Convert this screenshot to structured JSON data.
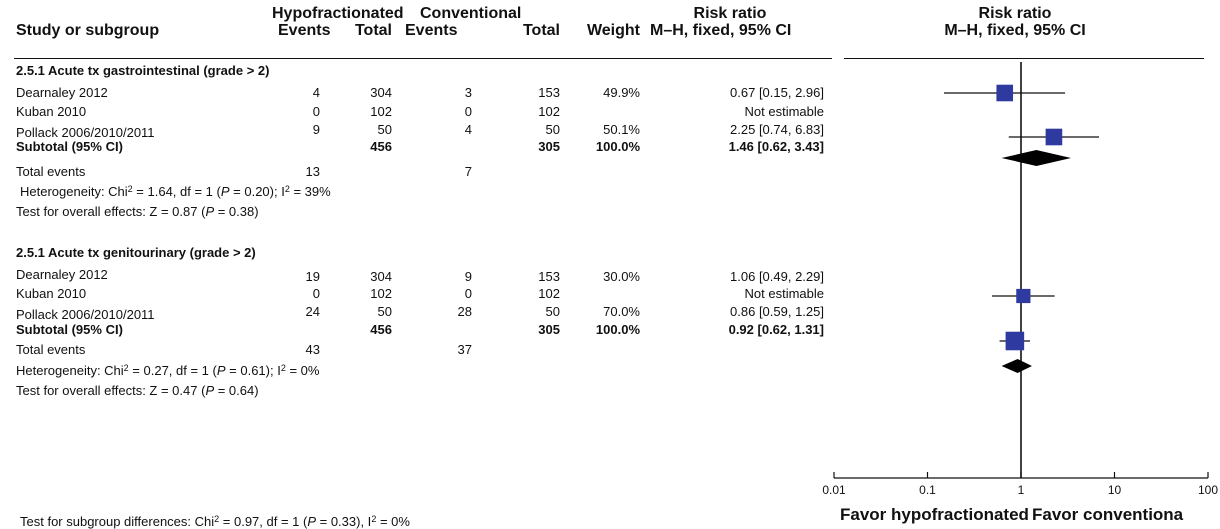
{
  "header": {
    "group1": "Hypofractionated",
    "group2": "Conventional",
    "risk_ratio": "Risk ratio",
    "risk_ratio_plot": "Risk ratio",
    "study_col": "Study or subgroup",
    "events1": "Events",
    "total1": "Total",
    "events2": "Events",
    "total2": "Total",
    "weight": "Weight",
    "method": "M–H, fixed, 95% CI",
    "method_plot": "M–H, fixed, 95% CI"
  },
  "subgroups": [
    {
      "title": "2.5.1 Acute tx gastrointestinal (grade > 2)",
      "rows": [
        {
          "study": "Dearnaley 2012",
          "e1": "4",
          "t1": "304",
          "e2": "3",
          "t2": "153",
          "weight": "49.9%",
          "ci_text": "0.67 [0.15, 2.96]"
        },
        {
          "study": "Kuban 2010",
          "e1": "0",
          "t1": "102",
          "e2": "0",
          "t2": "102",
          "weight": "",
          "ci_text": "Not estimable"
        },
        {
          "study": "Pollack 2006/2010/2011",
          "e1": "9",
          "t1": "50",
          "e2": "4",
          "t2": "50",
          "weight": "50.1%",
          "ci_text": "2.25 [0.74, 6.83]"
        }
      ],
      "subtotal": {
        "label": "Subtotal (95% CI)",
        "t1": "456",
        "t2": "305",
        "weight": "100.0%",
        "ci_text": "1.46 [0.62, 3.43]"
      },
      "total_events": {
        "label": "Total events",
        "e1": "13",
        "e2": "7"
      },
      "heterogeneity": {
        "prefix": "Heterogeneity: Chi",
        "sup": "2",
        "mid": " = 1.64, df = 1 (",
        "p": "P",
        "pval": " = 0.20); I",
        "sup2": "2",
        "tail": " =  39%"
      },
      "overall": {
        "prefix": "Test for overall effects: Z = 0.87 (",
        "p": "P",
        "tail": " = 0.38)"
      }
    },
    {
      "title": "2.5.1 Acute tx genitourinary (grade > 2)",
      "rows": [
        {
          "study": "Dearnaley 2012",
          "e1": "19",
          "t1": "304",
          "e2": "9",
          "t2": "153",
          "weight": "30.0%",
          "ci_text": "1.06 [0.49, 2.29]"
        },
        {
          "study": "Kuban 2010",
          "e1": "0",
          "t1": "102",
          "e2": "0",
          "t2": "102",
          "weight": "",
          "ci_text": "Not estimable"
        },
        {
          "study": "Pollack 2006/2010/2011",
          "e1": "24",
          "t1": "50",
          "e2": "28",
          "t2": "50",
          "weight": "70.0%",
          "ci_text": "0.86 [0.59, 1.25]"
        }
      ],
      "subtotal": {
        "label": "Subtotal (95% CI)",
        "t1": "456",
        "t2": "305",
        "weight": "100.0%",
        "ci_text": "0.92 [0.62, 1.31]"
      },
      "total_events": {
        "label": "Total events",
        "e1": "43",
        "e2": "37"
      },
      "heterogeneity": {
        "prefix": "Heterogeneity: Chi",
        "sup": "2",
        "mid": " = 0.27, df = 1 (",
        "p": "P",
        "pval": " = 0.61); I",
        "sup2": "2",
        "tail": " =  0%"
      },
      "overall": {
        "prefix": "Test for overall effects: Z = 0.47 (",
        "p": "P",
        "tail": " = 0.64)"
      }
    }
  ],
  "subgroup_diff": {
    "prefix": "Test for subgroup differences: Chi",
    "sup": "2",
    "mid": " = 0.97, df = 1 (",
    "p": "P",
    "pval": " = 0.33), I",
    "sup2": "2",
    "tail": " = 0%"
  },
  "footer": {
    "favor_left": "Favor hypofractionated",
    "favor_right": "Favor conventiona"
  },
  "chart_data": {
    "type": "forest",
    "x_scale": "log",
    "xlim": [
      0.01,
      100
    ],
    "ticks": [
      0.01,
      0.1,
      1,
      10,
      100
    ],
    "tick_labels": [
      "0.01",
      "0.1",
      "1",
      "10",
      "100"
    ],
    "marker_color": "#2e3a9f",
    "reference_line": 1,
    "studies": [
      {
        "subgroup": 0,
        "row": 0,
        "rr": 0.67,
        "lo": 0.15,
        "hi": 2.96,
        "weight": 49.9
      },
      {
        "subgroup": 0,
        "row": 2,
        "rr": 2.25,
        "lo": 0.74,
        "hi": 6.83,
        "weight": 50.1
      },
      {
        "subgroup": 1,
        "row": 0,
        "rr": 1.06,
        "lo": 0.49,
        "hi": 2.29,
        "weight": 30.0
      },
      {
        "subgroup": 1,
        "row": 2,
        "rr": 0.86,
        "lo": 0.59,
        "hi": 1.25,
        "weight": 70.0
      }
    ],
    "subtotals": [
      {
        "subgroup": 0,
        "rr": 1.46,
        "lo": 0.62,
        "hi": 3.43
      },
      {
        "subgroup": 1,
        "rr": 0.92,
        "lo": 0.62,
        "hi": 1.31
      }
    ]
  }
}
